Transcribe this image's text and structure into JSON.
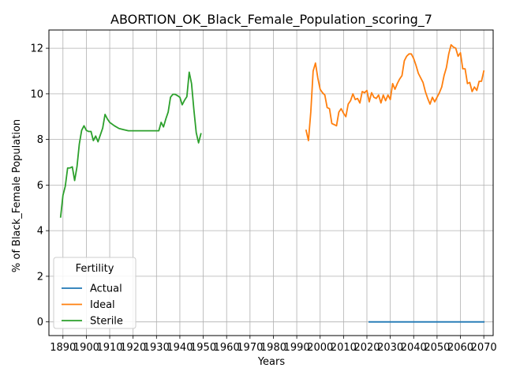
{
  "chart_data": {
    "type": "line",
    "title": "ABORTION_OK_Black_Female_Population_scoring_7",
    "xlabel": "Years",
    "ylabel": "% of Black_Female Population",
    "xlim": [
      1884,
      2074
    ],
    "ylim": [
      -0.6,
      12.8
    ],
    "xticks": [
      1890,
      1900,
      1910,
      1920,
      1930,
      1940,
      1950,
      1960,
      1970,
      1980,
      1990,
      2000,
      2010,
      2020,
      2030,
      2040,
      2050,
      2060,
      2070
    ],
    "xtick_labels": [
      "1890",
      "1900",
      "1910",
      "1920",
      "1930",
      "1940",
      "1950",
      "1960",
      "1970",
      "1980",
      "1990",
      "2000",
      "2010",
      "2020",
      "2030",
      "2040",
      "2050",
      "2060",
      "2070"
    ],
    "yticks": [
      0,
      2,
      4,
      6,
      8,
      10,
      12
    ],
    "ytick_labels": [
      "0",
      "2",
      "4",
      "6",
      "8",
      "10",
      "12"
    ],
    "grid": true,
    "legend": {
      "title": "Fertility",
      "placement": "lower-left"
    },
    "series": [
      {
        "name": "Actual",
        "color": "#1f77b4",
        "x": [
          2021,
          2030,
          2040,
          2050,
          2060,
          2070
        ],
        "y": [
          0,
          0,
          0,
          0,
          0,
          0
        ]
      },
      {
        "name": "Ideal",
        "color": "#ff7f0e",
        "x": [
          1994,
          1995,
          1996,
          1997,
          1998,
          1999,
          2000,
          2001,
          2002,
          2003,
          2004,
          2005,
          2006,
          2007,
          2008,
          2009,
          2010,
          2011,
          2012,
          2013,
          2014,
          2015,
          2016,
          2017,
          2018,
          2019,
          2020,
          2021,
          2022,
          2023,
          2024,
          2025,
          2026,
          2027,
          2028,
          2029,
          2030,
          2031,
          2032,
          2033,
          2034,
          2035,
          2036,
          2037,
          2038,
          2039,
          2040,
          2041,
          2042,
          2043,
          2044,
          2045,
          2046,
          2047,
          2048,
          2049,
          2050,
          2051,
          2052,
          2053,
          2054,
          2055,
          2056,
          2057,
          2058,
          2059,
          2060,
          2061,
          2062,
          2063,
          2064,
          2065,
          2066,
          2067,
          2068,
          2069,
          2070
        ],
        "y": [
          8.4,
          7.95,
          9.2,
          11.0,
          11.35,
          10.7,
          10.2,
          10.05,
          9.95,
          9.4,
          9.35,
          8.7,
          8.65,
          8.6,
          9.2,
          9.35,
          9.15,
          9.0,
          9.55,
          9.7,
          10.0,
          9.75,
          9.8,
          9.6,
          10.1,
          10.05,
          10.15,
          9.65,
          10.05,
          9.85,
          9.8,
          9.95,
          9.6,
          9.95,
          9.7,
          9.95,
          9.75,
          10.45,
          10.2,
          10.45,
          10.65,
          10.8,
          11.45,
          11.65,
          11.75,
          11.75,
          11.55,
          11.25,
          10.9,
          10.7,
          10.5,
          10.1,
          9.8,
          9.55,
          9.85,
          9.65,
          9.85,
          10.05,
          10.3,
          10.8,
          11.15,
          11.75,
          12.15,
          12.05,
          12.0,
          11.65,
          11.8,
          11.1,
          11.1,
          10.45,
          10.5,
          10.1,
          10.3,
          10.15,
          10.55,
          10.55,
          11.0
        ]
      },
      {
        "name": "Sterile",
        "color": "#2ca02c",
        "x": [
          1889,
          1890,
          1891,
          1892,
          1893,
          1894,
          1895,
          1896,
          1897,
          1898,
          1899,
          1900,
          1901,
          1902,
          1903,
          1904,
          1905,
          1906,
          1907,
          1908,
          1909,
          1910,
          1912,
          1914,
          1916,
          1918,
          1920,
          1925,
          1931,
          1932,
          1933,
          1934,
          1935,
          1936,
          1937,
          1938,
          1939,
          1940,
          1941,
          1942,
          1943,
          1944,
          1945,
          1946,
          1947,
          1948,
          1949
        ],
        "y": [
          4.6,
          5.55,
          5.95,
          6.75,
          6.75,
          6.8,
          6.2,
          6.8,
          7.8,
          8.4,
          8.6,
          8.4,
          8.35,
          8.35,
          7.95,
          8.15,
          7.9,
          8.2,
          8.5,
          9.1,
          8.9,
          8.75,
          8.6,
          8.48,
          8.43,
          8.38,
          8.38,
          8.38,
          8.38,
          8.75,
          8.55,
          8.9,
          9.2,
          9.85,
          9.98,
          9.98,
          9.92,
          9.85,
          9.52,
          9.72,
          9.88,
          10.95,
          10.45,
          9.3,
          8.3,
          7.85,
          8.25
        ]
      }
    ]
  }
}
